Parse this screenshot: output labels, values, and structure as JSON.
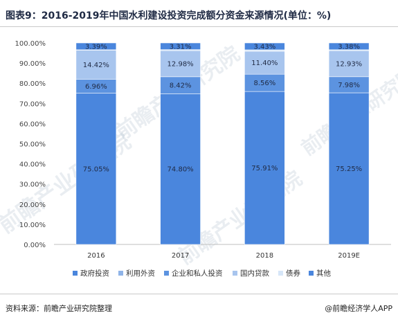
{
  "title": "图表9：2016-2019年中国水利建设投资完成额分资金来源情况(单位：%)",
  "footer": {
    "source": "资料来源：前瞻产业研究院整理",
    "brand": "@前瞻经济学人APP"
  },
  "watermark": "前瞻产业研究院",
  "chart_data": {
    "type": "bar",
    "stacked": true,
    "categories": [
      "2016",
      "2017",
      "2018",
      "2019E"
    ],
    "ylim": [
      0,
      100
    ],
    "yticks": [
      "0.00%",
      "10.00%",
      "20.00%",
      "30.00%",
      "40.00%",
      "50.00%",
      "60.00%",
      "70.00%",
      "80.00%",
      "90.00%",
      "100.00%"
    ],
    "legend_position": "bottom",
    "grid": false,
    "series": [
      {
        "name": "政府投资",
        "color": "#4a86dd",
        "values": [
          75.05,
          74.8,
          75.91,
          75.25
        ],
        "labels": [
          "75.05%",
          "74.80%",
          "75.91%",
          "75.25%"
        ]
      },
      {
        "name": "利用外资",
        "color": "#8fb4e8",
        "values": [
          0,
          0,
          0,
          0
        ],
        "labels": [
          "",
          "",
          "",
          ""
        ]
      },
      {
        "name": "企业和私人投资",
        "color": "#5c93e0",
        "values": [
          6.96,
          8.42,
          8.56,
          7.98
        ],
        "labels": [
          "6.96%",
          "8.42%",
          "8.56%",
          "7.98%"
        ]
      },
      {
        "name": "国内贷款",
        "color": "#a8c5ee",
        "values": [
          14.42,
          12.98,
          11.4,
          12.93
        ],
        "labels": [
          "14.42%",
          "12.98%",
          "11.40%",
          "12.93%"
        ]
      },
      {
        "name": "债券",
        "color": "#d6e6f8",
        "values": [
          0.18,
          0.49,
          0.7,
          0.46
        ],
        "labels": [
          "",
          "",
          "",
          ""
        ]
      },
      {
        "name": "其他",
        "color": "#4a86dd",
        "values": [
          3.39,
          3.31,
          3.43,
          3.38
        ],
        "labels": [
          "3.39%",
          "3.31%",
          "3.43%",
          "3.38%"
        ]
      }
    ]
  }
}
